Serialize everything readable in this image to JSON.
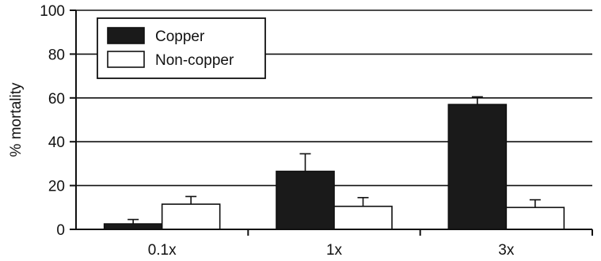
{
  "chart_data": {
    "type": "bar",
    "title": "",
    "xlabel": "",
    "ylabel": "% mortality",
    "categories": [
      "0.1x",
      "1x",
      "3x"
    ],
    "ylim": [
      0,
      100
    ],
    "yticks": [
      0,
      20,
      40,
      60,
      80,
      100
    ],
    "grid": "horizontal",
    "legend_position": "top-left",
    "series": [
      {
        "name": "Copper",
        "values": [
          2.5,
          26.5,
          57
        ],
        "errors": [
          2,
          8,
          3.5
        ],
        "color": "#1a1a1a"
      },
      {
        "name": "Non-copper",
        "values": [
          11.5,
          10.5,
          10
        ],
        "errors": [
          3.5,
          4,
          3.5
        ],
        "color": "#ffffff"
      }
    ]
  }
}
